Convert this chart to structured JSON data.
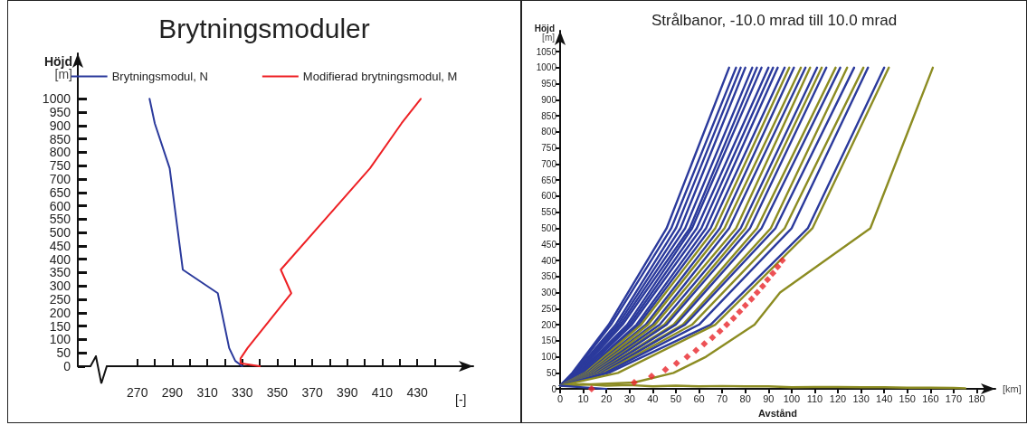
{
  "chart_data": [
    {
      "type": "line",
      "title": "Brytningsmoduler",
      "xlabel": "[-]",
      "ylabel": "Höjd\n[m]",
      "legend": "top",
      "marker": "none",
      "grid": false,
      "xlim": [
        236,
        462
      ],
      "xticks": [
        270,
        {
          "value": 280,
          "label": null
        },
        290,
        {
          "value": 300,
          "label": null
        },
        310,
        {
          "value": 320,
          "label": null
        },
        330,
        {
          "value": 340,
          "label": null
        },
        350,
        {
          "value": 360,
          "label": null
        },
        370,
        {
          "value": 380,
          "label": null
        },
        390,
        {
          "value": 400,
          "label": null
        },
        410,
        {
          "value": 420,
          "label": null
        },
        430,
        {
          "value": 440,
          "label": null
        }
      ],
      "ylim": [
        0,
        1170
      ],
      "yticks": [
        0,
        50,
        100,
        150,
        200,
        250,
        300,
        350,
        400,
        450,
        500,
        550,
        600,
        650,
        700,
        750,
        800,
        850,
        900,
        950,
        1000
      ],
      "series": [
        {
          "name": "Brytningsmodul, N",
          "color": "#2b3a9c",
          "x": [
            277,
            280,
            288.5,
            296,
            316,
            322.5,
            326,
            330
          ],
          "values": [
            1000,
            908,
            740,
            361,
            273,
            68,
            20,
            0
          ]
        },
        {
          "name": "Modifierad brytningsmodul, M",
          "color": "#ee2024",
          "x": [
            432,
            421,
            403,
            352,
            358,
            333,
            329,
            329,
            340
          ],
          "values": [
            1000,
            908,
            740,
            361,
            273,
            68,
            29,
            11,
            0
          ]
        }
      ]
    },
    {
      "type": "line",
      "title": "Strålbanor, -10.0 mrad till 10.0 mrad",
      "xlabel": "Avstånd",
      "ylabel": "Höjd\n[m]",
      "annotations": [
        "[km]"
      ],
      "marker": "none",
      "grid": false,
      "xlim": [
        0,
        188
      ],
      "xticks": [
        0,
        10,
        20,
        30,
        40,
        50,
        60,
        70,
        80,
        90,
        100,
        110,
        120,
        130,
        140,
        150,
        160,
        170,
        180
      ],
      "ylim": [
        0,
        1115
      ],
      "yticks": [
        0,
        50,
        100,
        150,
        200,
        250,
        300,
        350,
        400,
        450,
        500,
        550,
        600,
        650,
        700,
        750,
        800,
        850,
        900,
        950,
        1000,
        1050
      ],
      "series": [
        {
          "color": "#2b3a9c",
          "x": [
            0,
            5.3,
            21,
            46,
            73
          ],
          "values": [
            10,
            50,
            200,
            500,
            1000
          ]
        },
        {
          "color": "#2b3a9c",
          "x": [
            0,
            5.8,
            22,
            48,
            76
          ],
          "values": [
            10,
            50,
            200,
            500,
            1000
          ]
        },
        {
          "color": "#2b3a9c",
          "x": [
            0,
            6.3,
            24,
            50,
            78
          ],
          "values": [
            10,
            50,
            200,
            500,
            1000
          ]
        },
        {
          "color": "#2b3a9c",
          "x": [
            0,
            6.8,
            25,
            52,
            80
          ],
          "values": [
            10,
            50,
            200,
            500,
            1000
          ]
        },
        {
          "color": "#2b3a9c",
          "x": [
            0,
            7.3,
            26,
            54,
            83
          ],
          "values": [
            10,
            50,
            200,
            500,
            1000
          ]
        },
        {
          "color": "#2b3a9c",
          "x": [
            0,
            7.8,
            27,
            56,
            85
          ],
          "values": [
            10,
            50,
            200,
            500,
            1000
          ]
        },
        {
          "color": "#2b3a9c",
          "x": [
            0,
            8.3,
            29,
            57,
            87
          ],
          "values": [
            10,
            50,
            200,
            500,
            1000
          ]
        },
        {
          "color": "#2b3a9c",
          "x": [
            0,
            8.8,
            30,
            59,
            90
          ],
          "values": [
            10,
            50,
            200,
            500,
            1000
          ]
        },
        {
          "color": "#2b3a9c",
          "x": [
            0,
            9.3,
            31,
            61,
            92
          ],
          "values": [
            10,
            50,
            200,
            500,
            1000
          ]
        },
        {
          "color": "#2b3a9c",
          "x": [
            0,
            9.9,
            33,
            63,
            94
          ],
          "values": [
            10,
            50,
            200,
            500,
            1000
          ]
        },
        {
          "color": "#2b3a9c",
          "x": [
            0,
            10.4,
            34,
            65,
            97
          ],
          "values": [
            10,
            50,
            200,
            500,
            1000
          ]
        },
        {
          "color": "#8c8c22",
          "x": [
            0,
            10.9,
            35,
            67,
            99
          ],
          "values": [
            10,
            50,
            200,
            500,
            1000
          ]
        },
        {
          "color": "#2b3a9c",
          "x": [
            0,
            11.5,
            37,
            69,
            101
          ],
          "values": [
            10,
            50,
            200,
            500,
            1000
          ]
        },
        {
          "color": "#8c8c22",
          "x": [
            0,
            12.1,
            38,
            71,
            104
          ],
          "values": [
            10,
            50,
            200,
            500,
            1000
          ]
        },
        {
          "color": "#2b3a9c",
          "x": [
            0,
            12.7,
            40,
            73,
            106
          ],
          "values": [
            10,
            50,
            200,
            500,
            1000
          ]
        },
        {
          "color": "#8c8c22",
          "x": [
            0,
            13.2,
            41,
            76,
            108
          ],
          "values": [
            10,
            50,
            200,
            500,
            1000
          ]
        },
        {
          "color": "#2b3a9c",
          "x": [
            0,
            13.8,
            43,
            78,
            111
          ],
          "values": [
            10,
            50,
            200,
            500,
            1000
          ]
        },
        {
          "color": "#8c8c22",
          "x": [
            0,
            14.4,
            45,
            80,
            113
          ],
          "values": [
            10,
            50,
            200,
            500,
            1000
          ]
        },
        {
          "color": "#2b3a9c",
          "x": [
            0,
            15,
            46,
            82,
            115
          ],
          "values": [
            10,
            50,
            200,
            500,
            1000
          ]
        },
        {
          "color": "#8c8c22",
          "x": [
            0,
            15.8,
            49,
            85,
            119
          ],
          "values": [
            10,
            50,
            200,
            500,
            1000
          ]
        },
        {
          "color": "#2b3a9c",
          "x": [
            0,
            16.4,
            50,
            87,
            121
          ],
          "values": [
            10,
            50,
            200,
            500,
            1000
          ]
        },
        {
          "color": "#8c8c22",
          "x": [
            0,
            17.2,
            53,
            91,
            124
          ],
          "values": [
            10,
            50,
            200,
            500,
            1000
          ]
        },
        {
          "color": "#2b3a9c",
          "x": [
            0,
            17.8,
            54,
            93,
            127
          ],
          "values": [
            10,
            50,
            200,
            500,
            1000
          ]
        },
        {
          "color": "#8c8c22",
          "x": [
            0,
            18.8,
            57,
            97,
            131
          ],
          "values": [
            10,
            50,
            200,
            500,
            1000
          ]
        },
        {
          "color": "#2b3a9c",
          "x": [
            0,
            19.6,
            60,
            100,
            133
          ],
          "values": [
            10,
            50,
            200,
            500,
            1000
          ]
        },
        {
          "color": "#2b3a9c",
          "x": [
            0,
            21,
            65,
            107,
            140
          ],
          "values": [
            10,
            50,
            200,
            500,
            1000
          ]
        },
        {
          "color": "#8c8c22",
          "x": [
            0,
            25,
            67,
            109,
            142
          ],
          "values": [
            10,
            50,
            200,
            500,
            1000
          ]
        },
        {
          "color": "#8c8c22",
          "x": [
            0,
            32,
            49,
            63,
            84,
            95,
            134,
            161
          ],
          "values": [
            10,
            20,
            50,
            100,
            200,
            300,
            500,
            1000
          ]
        },
        {
          "color": "#8c8c22",
          "x": [
            0,
            10,
            20,
            30,
            40,
            50,
            60,
            70,
            80,
            90,
            100,
            110,
            120,
            130,
            140,
            150,
            160,
            170,
            175
          ],
          "values": [
            10,
            15,
            10,
            12,
            8,
            10,
            8,
            9,
            8,
            8,
            5,
            6,
            6,
            5,
            5,
            4,
            4,
            3,
            2
          ]
        },
        {
          "color": "#2b3a9c",
          "x": [
            0,
            10,
            20
          ],
          "values": [
            10,
            5,
            0
          ]
        },
        {
          "type": "scatter",
          "marker": "diamond",
          "color": "#e8262a",
          "x": [
            13.6,
            32,
            39.5,
            45.5,
            50.3,
            54.9,
            58.7,
            62.3,
            65.8,
            69,
            72,
            74.9,
            77.5,
            80,
            82.7,
            85.1,
            87.5,
            89.6,
            91.9,
            94,
            96
          ],
          "values": [
            0,
            20,
            40,
            60,
            80,
            100,
            120,
            140,
            160,
            180,
            200,
            220,
            240,
            260,
            280,
            300,
            320,
            340,
            360,
            380,
            400
          ]
        }
      ]
    }
  ]
}
